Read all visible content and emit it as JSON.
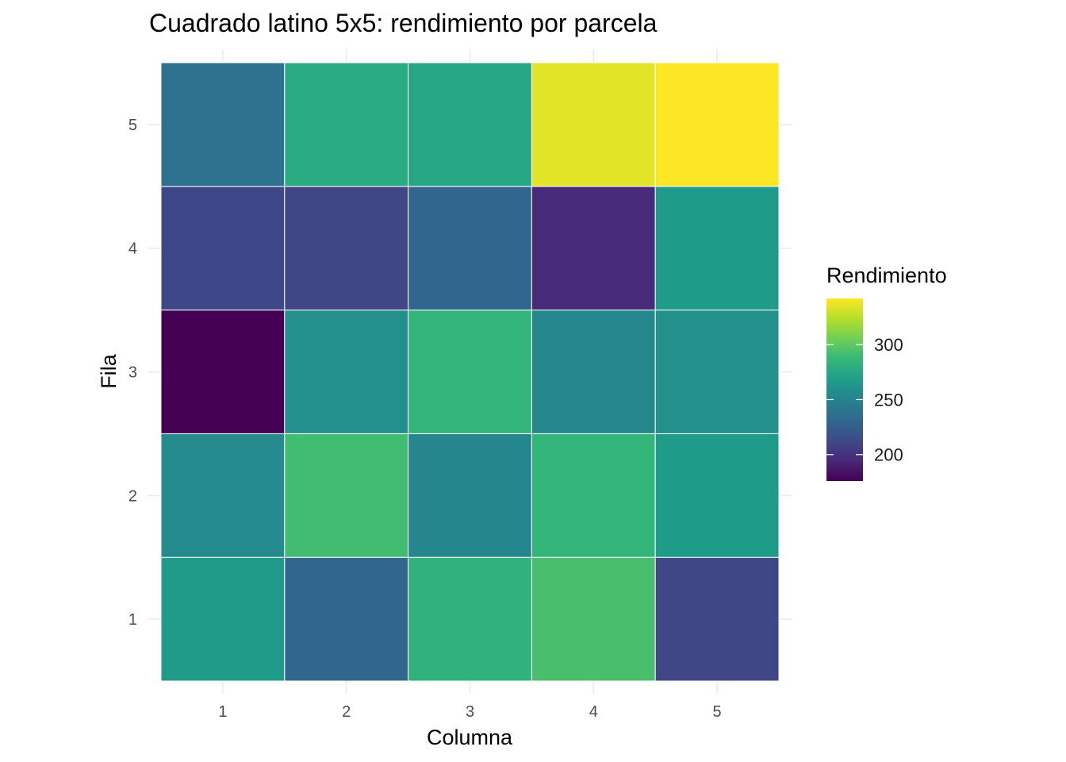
{
  "chart_data": {
    "type": "heatmap",
    "title": "Cuadrado latino 5x5: rendimiento por parcela",
    "xlabel": "Columna",
    "ylabel": "Fila",
    "x_categories": [
      "1",
      "2",
      "3",
      "4",
      "5"
    ],
    "y_categories": [
      "1",
      "2",
      "3",
      "4",
      "5"
    ],
    "values": [
      [
        266,
        231,
        283,
        293,
        211
      ],
      [
        255,
        291,
        253,
        285,
        267
      ],
      [
        176,
        259,
        285,
        254,
        259
      ],
      [
        212,
        211,
        231,
        196,
        267
      ],
      [
        238,
        278,
        275,
        335,
        342
      ]
    ],
    "value_note": "values[row_index][column_index], row 1 = bottom",
    "colormap": "viridis",
    "grid": true,
    "legend": {
      "title": "Rendimiento",
      "placement": "right",
      "min": 176,
      "max": 342,
      "ticks": [
        200,
        250,
        300
      ],
      "tick_labels": [
        "200",
        "250",
        "300"
      ]
    }
  }
}
